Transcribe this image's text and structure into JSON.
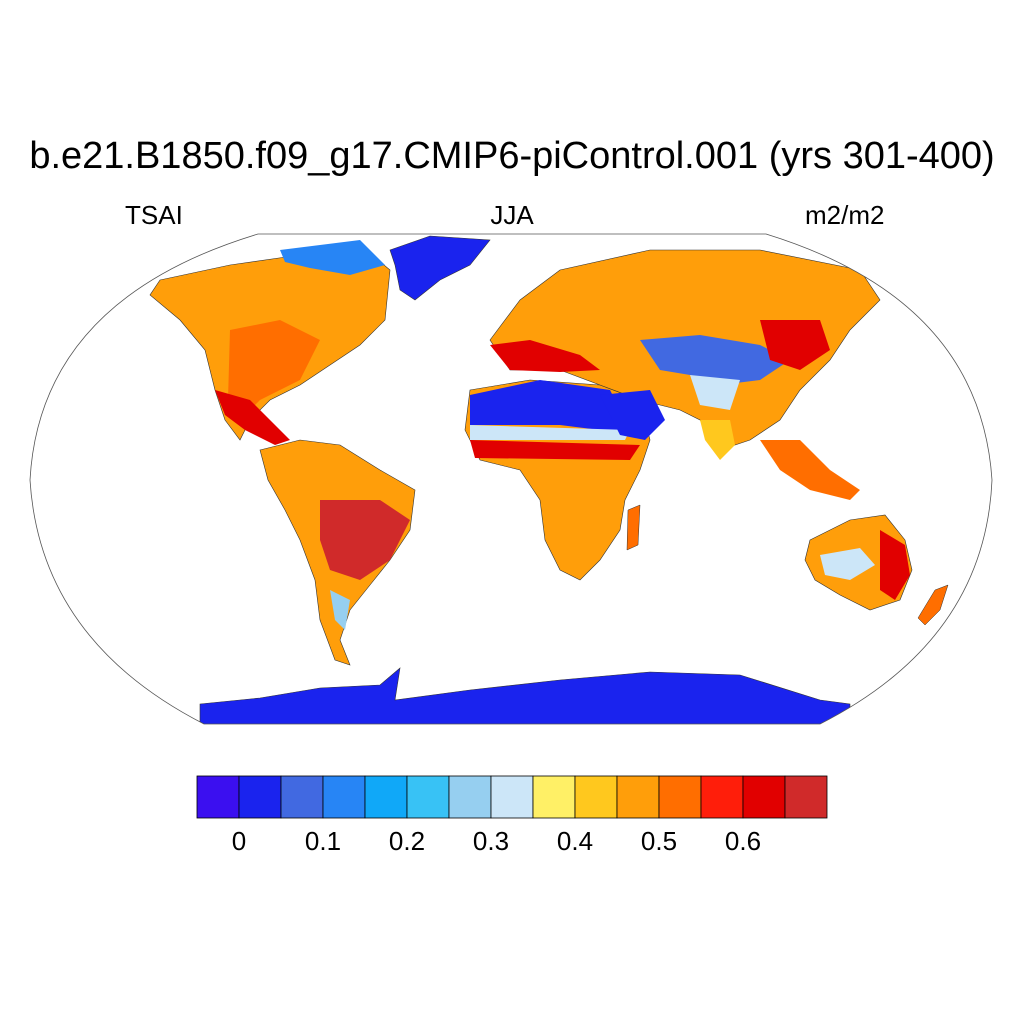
{
  "title": "b.e21.B1850.f09_g17.CMIP6-piControl.001 (yrs 301-400)",
  "subtitle_left": "TSAI",
  "subtitle_center": "JJA",
  "subtitle_right": "m2/m2",
  "colorbar": {
    "colors": [
      "#3b0ff0",
      "#1a23ee",
      "#4169e1",
      "#2785f5",
      "#10a8f8",
      "#38c2f5",
      "#96cff0",
      "#cce6f8",
      "#fff066",
      "#ffc81e",
      "#ff9e0a",
      "#ff6e00",
      "#ff1e0a",
      "#e10000",
      "#d02a2a"
    ],
    "tick_labels": [
      "0",
      "0.1",
      "0.2",
      "0.3",
      "0.4",
      "0.5",
      "0.6"
    ],
    "tick_values": [
      0,
      0.1,
      0.2,
      0.3,
      0.4,
      0.5,
      0.6
    ]
  },
  "map": {
    "projection": "Robinson",
    "ocean_color": "#ffffff",
    "regions": [
      {
        "name": "Greenland",
        "color": "#1a23ee"
      },
      {
        "name": "Antarctica",
        "color": "#1a23ee"
      },
      {
        "name": "Sahara-Arabia",
        "color": "#1a23ee"
      },
      {
        "name": "North America",
        "color": "#ff9e0a"
      },
      {
        "name": "South America",
        "color": "#ff9e0a"
      },
      {
        "name": "Africa",
        "color": "#ff9e0a"
      },
      {
        "name": "Eurasia",
        "color": "#ff9e0a"
      },
      {
        "name": "Australia",
        "color": "#ff9e0a"
      }
    ]
  }
}
